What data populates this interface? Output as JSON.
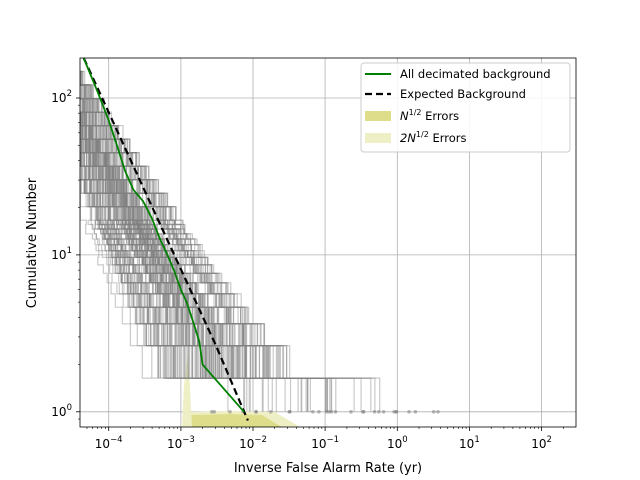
{
  "chart_data": {
    "type": "line",
    "title": "",
    "xlabel": "Inverse False Alarm Rate (yr)",
    "ylabel": "Cumulative Number",
    "x_scale": "log",
    "y_scale": "log",
    "xlim": [
      4e-05,
      300
    ],
    "ylim": [
      0.8,
      180
    ],
    "grid": true,
    "legend_position": "top-right",
    "x_ticks": [
      {
        "value": 0.0001,
        "base": "10",
        "exp": "−4"
      },
      {
        "value": 0.001,
        "base": "10",
        "exp": "−3"
      },
      {
        "value": 0.01,
        "base": "10",
        "exp": "−2"
      },
      {
        "value": 0.1,
        "base": "10",
        "exp": "−1"
      },
      {
        "value": 1,
        "base": "10",
        "exp": "0"
      },
      {
        "value": 10,
        "base": "10",
        "exp": "1"
      },
      {
        "value": 100,
        "base": "10",
        "exp": "2"
      }
    ],
    "y_ticks": [
      {
        "value": 1,
        "base": "10",
        "exp": "0"
      },
      {
        "value": 10,
        "base": "10",
        "exp": "1"
      },
      {
        "value": 100,
        "base": "10",
        "exp": "2"
      }
    ],
    "legend": [
      {
        "key": "decimated",
        "label": "All decimated background",
        "style": "solid",
        "color": "#008000"
      },
      {
        "key": "expected",
        "label": "Expected Background",
        "style": "dashed",
        "color": "#000000"
      },
      {
        "key": "err1",
        "label_base": "N",
        "label_sup": "1/2",
        "label_rest": " Errors",
        "style": "patch",
        "color": "#dede8a"
      },
      {
        "key": "err2",
        "label_base": "2N",
        "label_sup": "1/2",
        "label_rest": " Errors",
        "style": "patch",
        "color": "#efefc6"
      }
    ],
    "series": [
      {
        "key": "expected",
        "x": [
          4.5e-05,
          0.0001,
          0.0003,
          0.001,
          0.003,
          0.0085
        ],
        "y": [
          180,
          81,
          27,
          8.1,
          2.7,
          0.88
        ]
      },
      {
        "key": "decimated",
        "x": [
          4.5e-05,
          7e-05,
          0.0001,
          0.00013,
          0.00017,
          0.00022,
          0.0003,
          0.0004,
          0.0005,
          0.00065,
          0.0008,
          0.001,
          0.0012,
          0.00155,
          0.0018,
          0.002,
          0.0075
        ],
        "y": [
          180,
          110,
          72,
          50,
          34,
          26,
          22,
          17,
          13,
          10,
          8,
          6,
          5,
          3.5,
          2.8,
          2,
          1
        ]
      },
      {
        "key": "background_trials",
        "count": 160,
        "color": "#808080",
        "opacity": 0.42
      }
    ],
    "error_bands": [
      {
        "key": "err1",
        "color": "#dede8a"
      },
      {
        "key": "err2",
        "color": "#efefc6"
      }
    ]
  }
}
